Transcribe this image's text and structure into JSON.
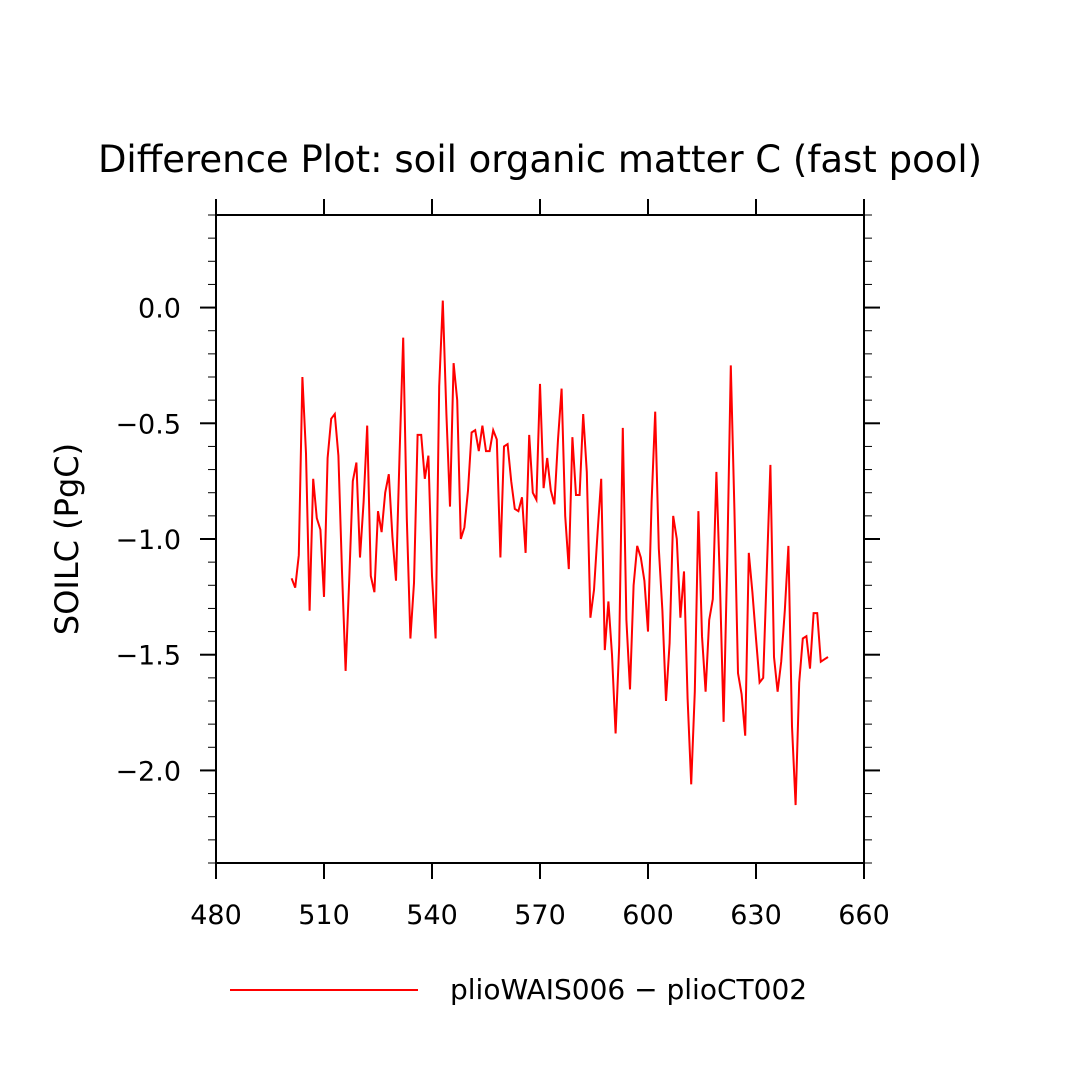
{
  "chart_data": {
    "type": "line",
    "title": "Difference Plot: soil organic matter C (fast pool)",
    "xlabel": "",
    "ylabel": "SOILC   (PgC)",
    "xlim": [
      480,
      660
    ],
    "ylim": [
      -2.4,
      0.4
    ],
    "x_ticks": [
      480,
      510,
      540,
      570,
      600,
      630,
      660
    ],
    "x_tick_labels": [
      "480",
      "510",
      "540",
      "570",
      "600",
      "630",
      "660"
    ],
    "y_ticks": [
      0.0,
      -0.5,
      -1.0,
      -1.5,
      -2.0
    ],
    "y_tick_labels": [
      "0.0",
      "−0.5",
      "−1.0",
      "−1.5",
      "−2.0"
    ],
    "grid": false,
    "legend_position": "bottom",
    "series": [
      {
        "name": "plioWAIS006 − plioCT002",
        "color": "#ff0000",
        "x": [
          501,
          502,
          503,
          504,
          505,
          506,
          507,
          508,
          509,
          510,
          511,
          512,
          513,
          514,
          515,
          516,
          517,
          518,
          519,
          520,
          521,
          522,
          523,
          524,
          525,
          526,
          527,
          528,
          529,
          530,
          531,
          532,
          533,
          534,
          535,
          536,
          537,
          538,
          539,
          540,
          541,
          542,
          543,
          544,
          545,
          546,
          547,
          548,
          549,
          550,
          551,
          552,
          553,
          554,
          555,
          556,
          557,
          558,
          559,
          560,
          561,
          562,
          563,
          564,
          565,
          566,
          567,
          568,
          569,
          570,
          571,
          572,
          573,
          574,
          575,
          576,
          577,
          578,
          579,
          580,
          581,
          582,
          583,
          584,
          585,
          586,
          587,
          588,
          589,
          590,
          591,
          592,
          593,
          594,
          595,
          596,
          597,
          598,
          599,
          600,
          601,
          602,
          603,
          604,
          605,
          606,
          607,
          608,
          609,
          610,
          611,
          612,
          613,
          614,
          615,
          616,
          617,
          618,
          619,
          620,
          621,
          622,
          623,
          624,
          625,
          626,
          627,
          628,
          629,
          630,
          631,
          632,
          633,
          634,
          635,
          636,
          637,
          638,
          639,
          640,
          641,
          642,
          643,
          644,
          645,
          646,
          647,
          648,
          649,
          650
        ],
        "values": [
          -1.17,
          -1.21,
          -1.07,
          -0.3,
          -0.63,
          -1.31,
          -0.74,
          -0.91,
          -0.96,
          -1.25,
          -0.65,
          -0.48,
          -0.46,
          -0.64,
          -1.14,
          -1.57,
          -1.18,
          -0.75,
          -0.67,
          -1.08,
          -0.84,
          -0.51,
          -1.16,
          -1.23,
          -0.88,
          -0.97,
          -0.8,
          -0.72,
          -0.99,
          -1.18,
          -0.63,
          -0.13,
          -0.91,
          -1.43,
          -1.19,
          -0.55,
          -0.55,
          -0.74,
          -0.64,
          -1.16,
          -1.43,
          -0.34,
          0.03,
          -0.46,
          -0.86,
          -0.24,
          -0.4,
          -1.0,
          -0.95,
          -0.79,
          -0.54,
          -0.53,
          -0.62,
          -0.51,
          -0.62,
          -0.62,
          -0.53,
          -0.57,
          -1.08,
          -0.6,
          -0.59,
          -0.75,
          -0.87,
          -0.88,
          -0.82,
          -1.06,
          -0.55,
          -0.8,
          -0.83,
          -0.33,
          -0.78,
          -0.65,
          -0.79,
          -0.85,
          -0.57,
          -0.35,
          -0.9,
          -1.13,
          -0.56,
          -0.81,
          -0.81,
          -0.46,
          -0.71,
          -1.34,
          -1.22,
          -0.97,
          -0.74,
          -1.48,
          -1.27,
          -1.5,
          -1.84,
          -1.46,
          -0.52,
          -1.35,
          -1.65,
          -1.2,
          -1.03,
          -1.08,
          -1.18,
          -1.4,
          -0.84,
          -0.45,
          -1.04,
          -1.31,
          -1.7,
          -1.45,
          -0.9,
          -1.0,
          -1.34,
          -1.14,
          -1.69,
          -2.06,
          -1.66,
          -0.88,
          -1.42,
          -1.66,
          -1.35,
          -1.26,
          -0.71,
          -1.2,
          -1.79,
          -1.1,
          -0.25,
          -0.87,
          -1.58,
          -1.67,
          -1.85,
          -1.06,
          -1.23,
          -1.43,
          -1.62,
          -1.6,
          -1.14,
          -0.68,
          -1.51,
          -1.66,
          -1.53,
          -1.31,
          -1.03,
          -1.81,
          -2.15,
          -1.62,
          -1.43,
          -1.42,
          -1.56,
          -1.32,
          -1.32,
          -1.53,
          -1.52,
          -1.51
        ]
      }
    ]
  }
}
